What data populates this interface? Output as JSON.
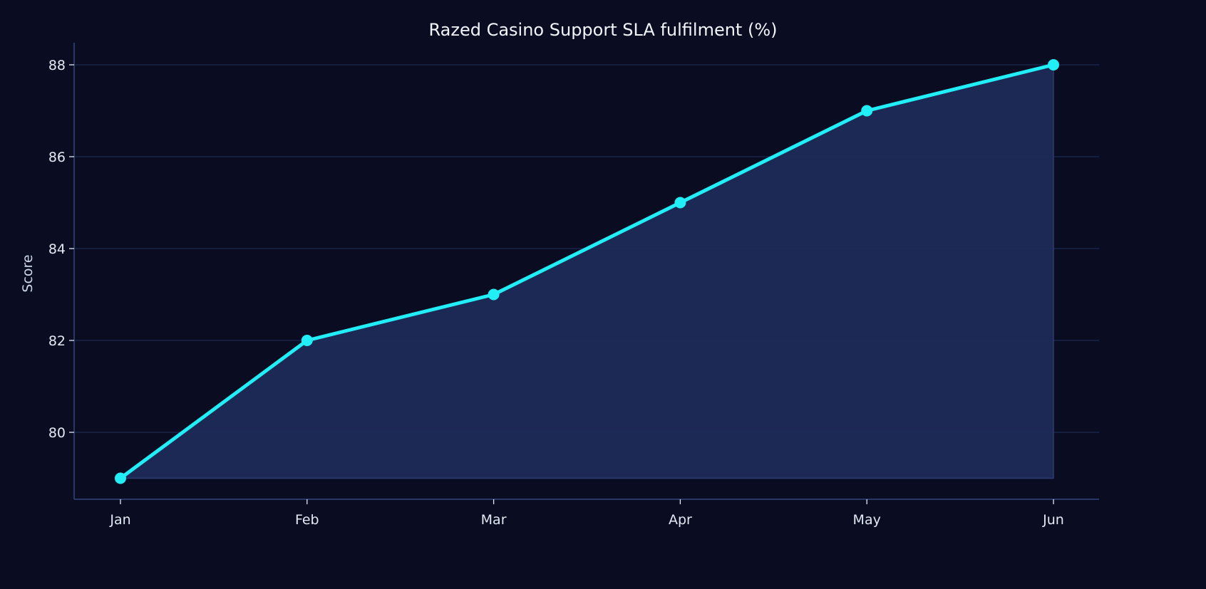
{
  "chart_data": {
    "type": "area",
    "title": "Razed Casino Support SLA fulfilment (%)",
    "xlabel": "",
    "ylabel": "Score",
    "categories": [
      "Jan",
      "Feb",
      "Mar",
      "Apr",
      "May",
      "Jun"
    ],
    "series": [
      {
        "name": "SLA fulfilment",
        "values": [
          79,
          82,
          83,
          85,
          87,
          88
        ]
      }
    ],
    "yticks": [
      80,
      82,
      84,
      86,
      88
    ],
    "ylim": [
      78.55,
      88.45
    ],
    "grid": true,
    "legend": null,
    "colors": {
      "background": "#0a0d21",
      "line": "#22eef7",
      "fill": "#1e2b58",
      "grid": "#1f2a52",
      "axis": "#34447e"
    }
  }
}
